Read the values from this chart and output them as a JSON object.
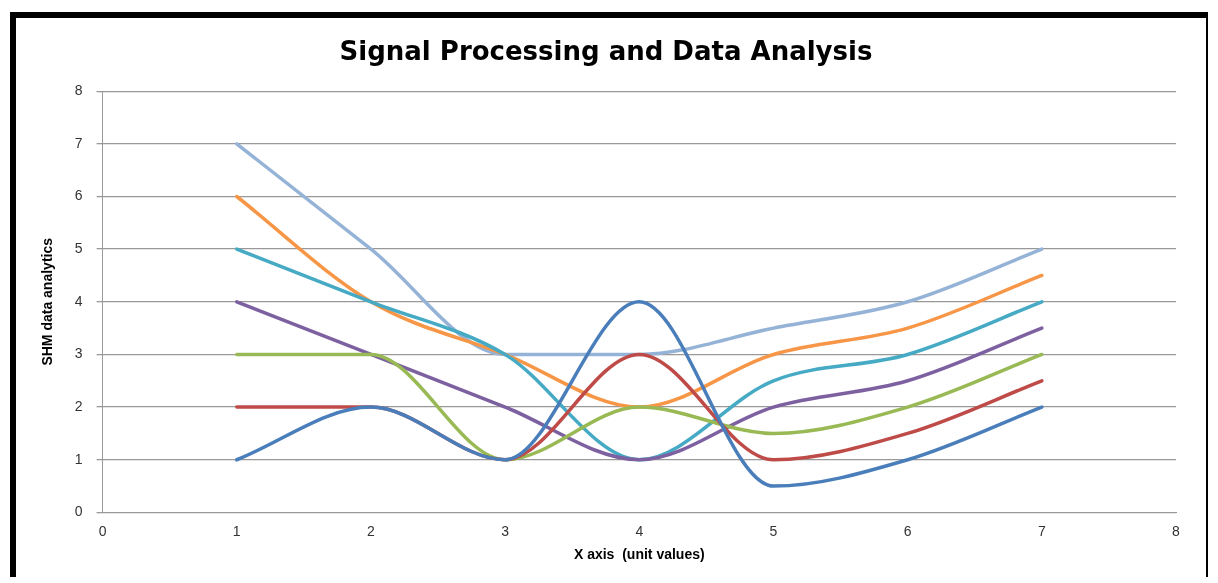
{
  "chart_data": {
    "type": "line",
    "title": "Signal Processing and Data Analysis",
    "xlabel": "X axis  (unit values)",
    "ylabel": "SHM data analytics",
    "x": [
      1,
      2,
      3,
      4,
      5,
      6,
      7
    ],
    "series": [
      {
        "color": "#4a7ebb",
        "values": [
          1,
          2,
          1,
          4,
          0.5,
          1,
          2
        ]
      },
      {
        "color": "#be4b48",
        "values": [
          2,
          2,
          1,
          3,
          1,
          1.5,
          2.5
        ]
      },
      {
        "color": "#98b954",
        "values": [
          3,
          3,
          1,
          2,
          1.5,
          2,
          3
        ]
      },
      {
        "color": "#7d60a0",
        "values": [
          4,
          3,
          2,
          1,
          2,
          2.5,
          3.5
        ]
      },
      {
        "color": "#46aac5",
        "values": [
          5,
          4,
          3,
          1,
          2.5,
          3,
          4
        ]
      },
      {
        "color": "#f79646",
        "values": [
          6,
          4,
          3,
          2,
          3,
          3.5,
          4.5
        ]
      },
      {
        "color": "#95b3d7",
        "values": [
          7,
          5,
          3,
          3,
          3.5,
          4,
          5
        ]
      }
    ],
    "xlim": [
      0,
      8
    ],
    "xticks": [
      0,
      1,
      2,
      3,
      4,
      5,
      6,
      7,
      8
    ],
    "ylim": [
      0,
      8
    ],
    "yticks": [
      0,
      1,
      2,
      3,
      4,
      5,
      6,
      7,
      8
    ],
    "grid": "y",
    "legend": false,
    "marker": "none",
    "line_style": "solid"
  }
}
